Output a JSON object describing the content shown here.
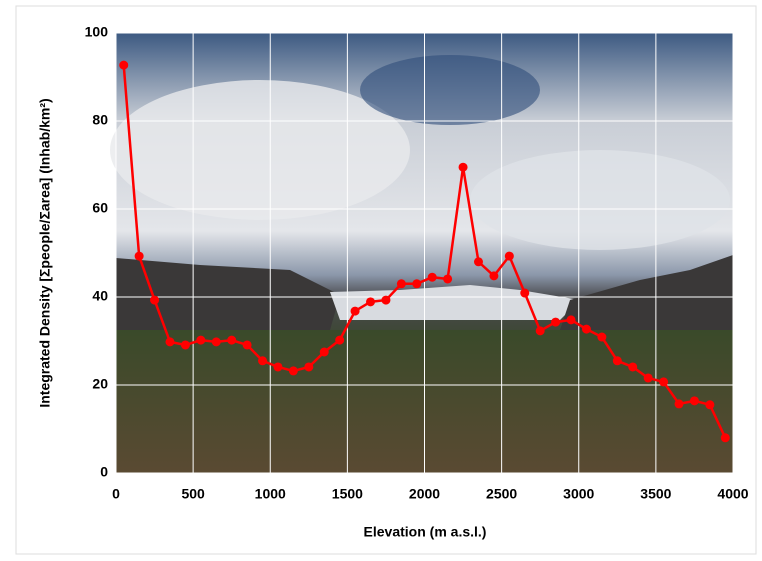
{
  "chart_data": {
    "type": "line",
    "x_label": "Elevation (m a.s.l.)",
    "y_label": "Integrated Density [Σpeople/Σarea] (Inhab/km²)",
    "x": [
      50,
      150,
      250,
      350,
      450,
      550,
      650,
      750,
      850,
      950,
      1050,
      1150,
      1250,
      1350,
      1450,
      1550,
      1650,
      1750,
      1850,
      1950,
      2050,
      2150,
      2250,
      2350,
      2450,
      2550,
      2650,
      2750,
      2850,
      2950,
      3050,
      3150,
      3250,
      3350,
      3450,
      3550,
      3650,
      3750,
      3850,
      3950
    ],
    "series": [
      {
        "color": "#ff0000",
        "values": [
          92.7,
          49.3,
          39.3,
          29.8,
          29.1,
          30.2,
          29.8,
          30.2,
          29.1,
          25.5,
          24.1,
          23.2,
          24.1,
          27.5,
          30.2,
          36.8,
          38.9,
          39.3,
          43,
          43,
          44.5,
          44.1,
          69.5,
          48,
          44.8,
          49.3,
          40.9,
          32.3,
          34.3,
          34.8,
          32.7,
          30.9,
          25.5,
          24.1,
          21.6,
          20.7,
          15.7,
          16.4,
          15.5,
          8
        ]
      }
    ],
    "xlim": [
      0,
      4000
    ],
    "xticks": [
      0,
      500,
      1000,
      1500,
      2000,
      2500,
      3000,
      3500,
      4000
    ],
    "ylim": [
      0,
      100
    ],
    "yticks": [
      0,
      20,
      40,
      60,
      80,
      100
    ],
    "grid": true
  }
}
